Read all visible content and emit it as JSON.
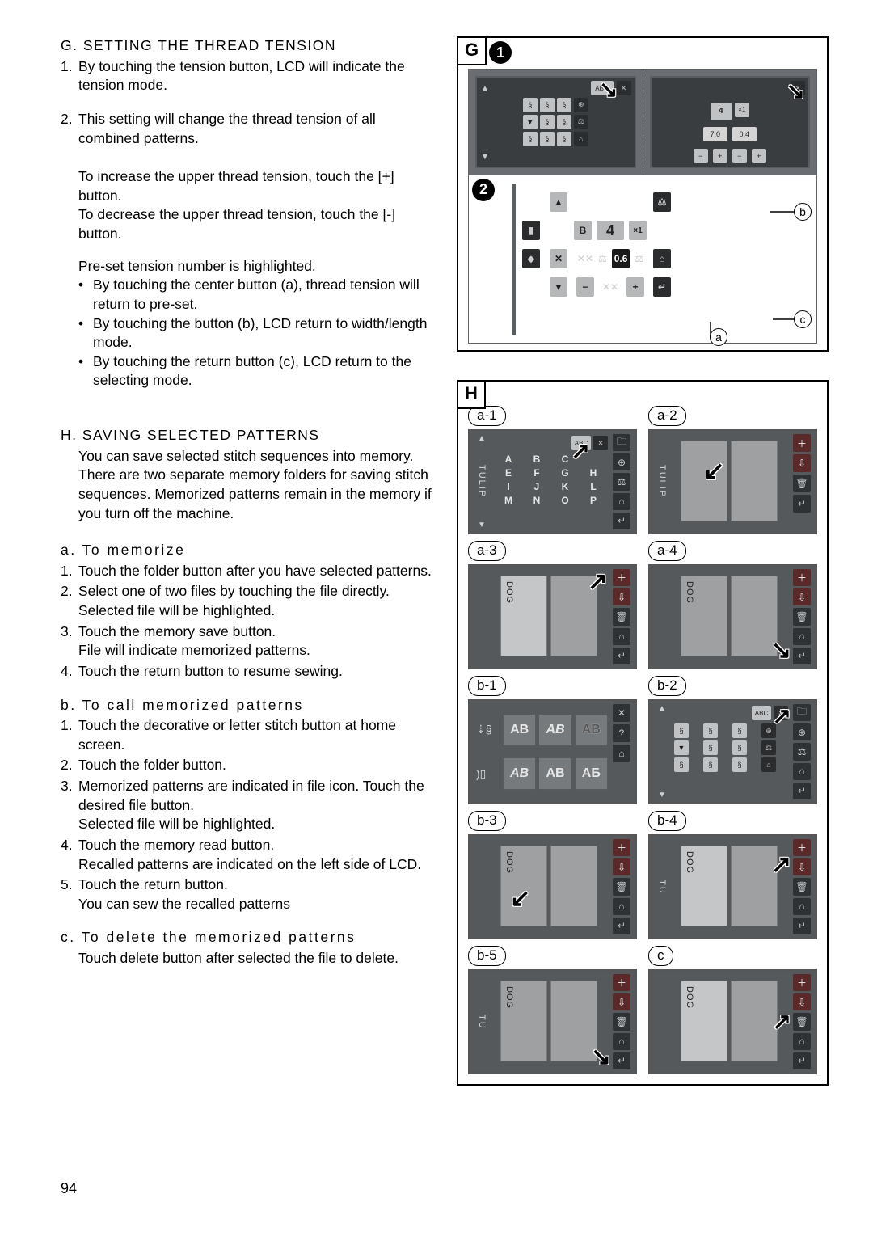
{
  "page_number": "94",
  "sectionG": {
    "heading": "G. SETTING THE THREAD TENSION",
    "items": [
      {
        "n": "1.",
        "text": "By touching the tension button, LCD will indicate the tension mode."
      },
      {
        "n": "2.",
        "text": "This setting will change the thread tension of all combined patterns."
      }
    ],
    "notes": [
      "To increase the upper thread tension, touch the [+] button.",
      "To decrease the upper thread tension, touch the [-] button.",
      "Pre-set tension number is highlighted."
    ],
    "bullets": [
      "By touching the center button (a), thread tension will return to pre-set.",
      "By touching the button (b), LCD return to width/length mode.",
      "By touching the return button (c), LCD return to the selecting mode."
    ]
  },
  "sectionH": {
    "heading": "H. SAVING SELECTED PATTERNS",
    "intro": "You can save selected stitch sequences into memory. There are two separate memory folders for saving stitch sequences. Memorized patterns remain in the memory if you turn off the machine.",
    "subA": {
      "heading": "a. To memorize",
      "steps": [
        {
          "n": "1.",
          "text": "Touch the folder button after you have selected patterns."
        },
        {
          "n": "2.",
          "text": "Select one of two files by touching the file directly. Selected file will be highlighted."
        },
        {
          "n": "3.",
          "text": "Touch the memory save button.\nFile will indicate memorized patterns."
        },
        {
          "n": "4.",
          "text": "Touch the return button to resume sewing."
        }
      ]
    },
    "subB": {
      "heading": "b. To call memorized patterns",
      "steps": [
        {
          "n": "1.",
          "text": "Touch the decorative or letter stitch button at home screen."
        },
        {
          "n": "2.",
          "text": "Touch the folder button."
        },
        {
          "n": "3.",
          "text": "Memorized patterns are indicated in file icon. Touch the desired file button.\nSelected file will be highlighted."
        },
        {
          "n": "4.",
          "text": "Touch the memory read button.\nRecalled patterns are indicated on the left side of LCD."
        },
        {
          "n": "5.",
          "text": "Touch the return button.\nYou can sew the recalled patterns"
        }
      ]
    },
    "subC": {
      "heading": "c. To delete the memorized patterns",
      "text": "Touch delete button after selected the file to delete."
    }
  },
  "figG": {
    "tag": "G",
    "num1": "1",
    "num2": "2",
    "callouts": {
      "a": "a",
      "b": "b",
      "c": "c"
    },
    "row1_values": {
      "left_display": "7.0",
      "right_display": "0.4",
      "abc": "ABC"
    },
    "row2": {
      "tension_value": "0.6",
      "big_num": "4",
      "ratio": "×1"
    }
  },
  "figH": {
    "tag": "H",
    "labels": [
      "a-1",
      "a-2",
      "a-3",
      "a-4",
      "b-1",
      "b-2",
      "b-3",
      "b-4",
      "b-5",
      "c"
    ],
    "a1_letters": [
      "A",
      "B",
      "C",
      "",
      "E",
      "F",
      "G",
      "H",
      "I",
      "J",
      "K",
      "L",
      "M",
      "N",
      "O",
      "P"
    ],
    "a1_side": "TULIP",
    "a2_side": "TULIP",
    "a3_file": "DOG",
    "a4_file": "DOG",
    "b1_fonts": [
      "AB",
      "AB",
      "AB",
      "AB",
      "AB",
      "АБ"
    ],
    "b2_abc": "ABC",
    "b3_files": {
      "left": "DOG",
      "right": ""
    },
    "b4_files": {
      "left": "DOG",
      "right": "TU"
    },
    "b5_files": {
      "left": "DOG",
      "right": "TU"
    },
    "c_file": "DOG"
  },
  "colors": {
    "text": "#000000",
    "bg": "#ffffff",
    "lcd_bg": "#56595c",
    "lcd_dark": "#3a3d40",
    "chip_light": "#b5b7b9",
    "chip_dark": "#2a2c2e",
    "file_pane": "#9ea0a2"
  }
}
